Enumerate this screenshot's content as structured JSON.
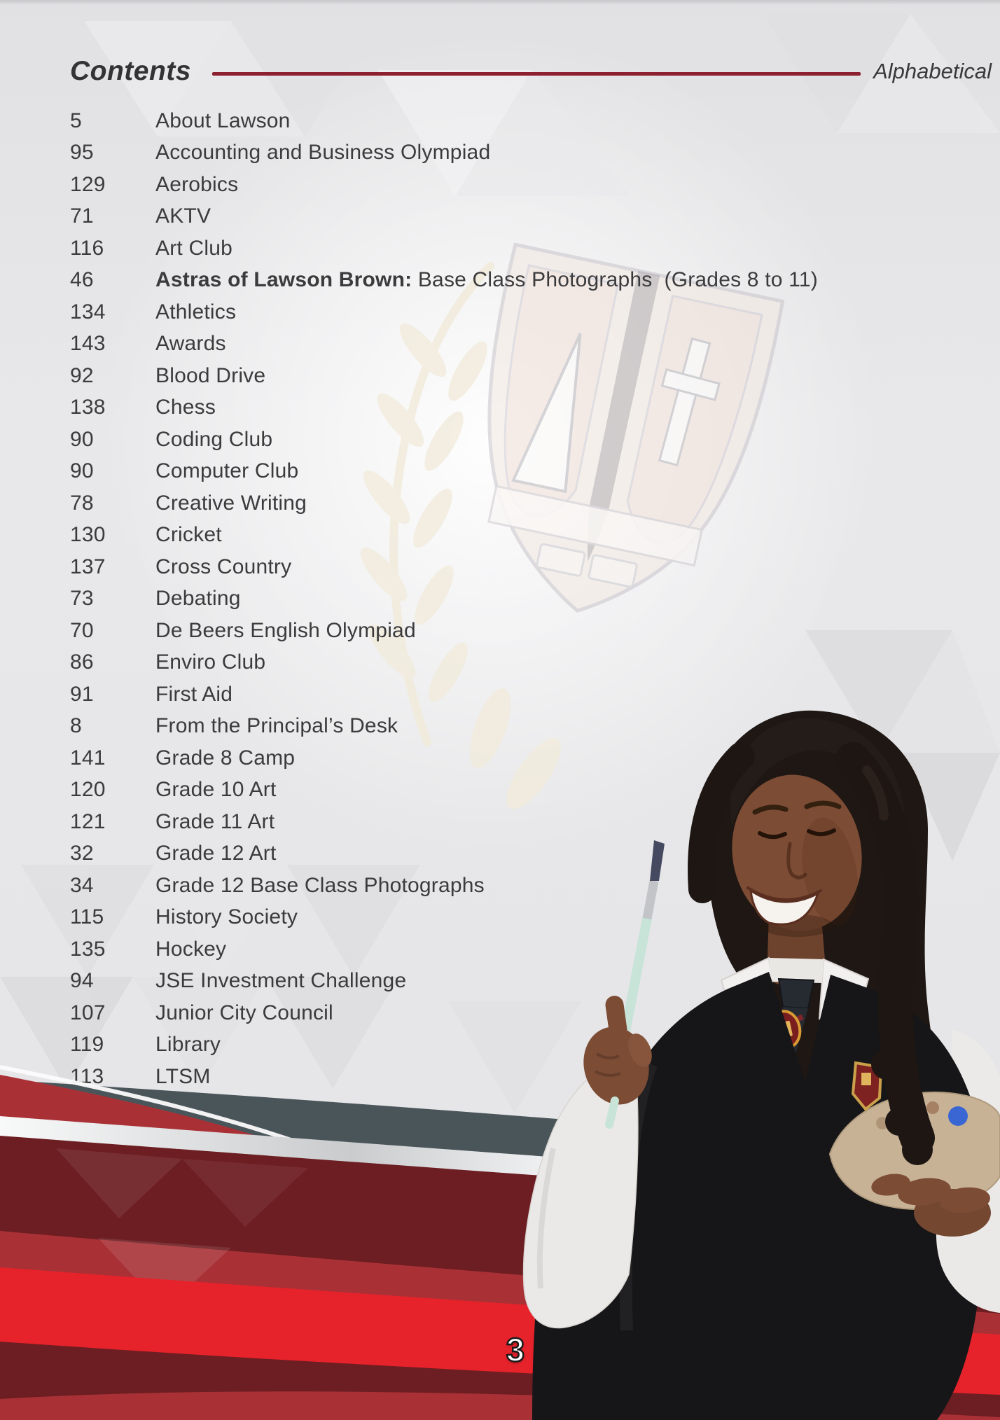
{
  "page": {
    "header": {
      "title": "Contents",
      "sort_label": "Alphabetical"
    },
    "toc": {
      "entries": [
        {
          "page_no": "5",
          "title": "About Lawson"
        },
        {
          "page_no": "95",
          "title": "Accounting and Business Olympiad"
        },
        {
          "page_no": "129",
          "title": "Aerobics"
        },
        {
          "page_no": "71",
          "title": "AKTV"
        },
        {
          "page_no": "116",
          "title": "Art Club"
        },
        {
          "page_no": "46",
          "title_bold": "Astras of Lawson Brown:",
          "title": " Base Class Photographs  (Grades 8 to 11)"
        },
        {
          "page_no": "134",
          "title": "Athletics"
        },
        {
          "page_no": "143",
          "title": "Awards"
        },
        {
          "page_no": "92",
          "title": "Blood Drive"
        },
        {
          "page_no": "138",
          "title": "Chess"
        },
        {
          "page_no": "90",
          "title": "Coding Club"
        },
        {
          "page_no": "90",
          "title": "Computer Club"
        },
        {
          "page_no": "78",
          "title": "Creative Writing"
        },
        {
          "page_no": "130",
          "title": "Cricket"
        },
        {
          "page_no": "137",
          "title": "Cross Country"
        },
        {
          "page_no": "73",
          "title": "Debating"
        },
        {
          "page_no": "70",
          "title": "De Beers English Olympiad"
        },
        {
          "page_no": "86",
          "title": "Enviro Club"
        },
        {
          "page_no": "91",
          "title": "First Aid"
        },
        {
          "page_no": "8",
          "title": "From the Principal’s Desk"
        },
        {
          "page_no": "141",
          "title": "Grade 8 Camp"
        },
        {
          "page_no": "120",
          "title": "Grade 10 Art"
        },
        {
          "page_no": "121",
          "title": "Grade 11 Art"
        },
        {
          "page_no": "32",
          "title": "Grade 12 Art"
        },
        {
          "page_no": "34",
          "title": "Grade 12 Base Class Photographs"
        },
        {
          "page_no": "115",
          "title": "History Society"
        },
        {
          "page_no": "135",
          "title": "Hockey"
        },
        {
          "page_no": "94",
          "title": "JSE Investment Challenge"
        },
        {
          "page_no": "107",
          "title": "Junior City Council"
        },
        {
          "page_no": "119",
          "title": "Library"
        },
        {
          "page_no": "113",
          "title": "LTSM"
        }
      ]
    },
    "footer": {
      "page_number": "3"
    },
    "decor": {
      "colors": {
        "accent_line": "#8c2030",
        "text": "#3b3b3d",
        "bright_red": "#e6222b",
        "medium_red": "#a93136",
        "dark_red": "#6d1e22",
        "silver": "#f2f2f4",
        "slate": "#4a555a",
        "page_bg": "#e7e7e9"
      }
    }
  }
}
